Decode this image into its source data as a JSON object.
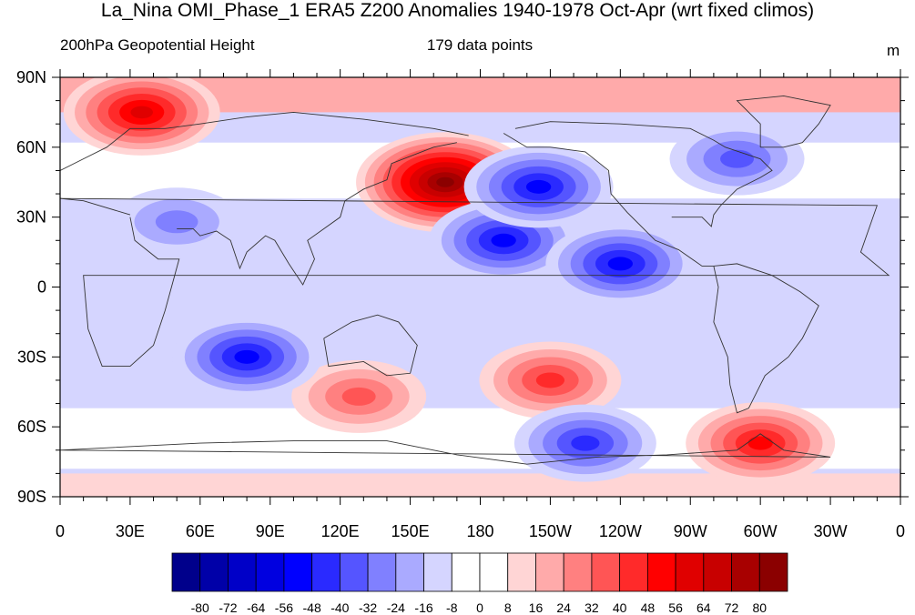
{
  "header": {
    "title": "La_Nina OMI_Phase_1 ERA5 Z200 Anomalies 1940-1978 Oct-Apr (wrt fixed climos)",
    "left_subtitle": "200hPa Geopotential Height",
    "center_subtitle": "179 data points",
    "units": "m"
  },
  "axes": {
    "lat_labels": [
      "90N",
      "60N",
      "30N",
      "0",
      "30S",
      "60S",
      "90S"
    ],
    "lon_labels": [
      "0",
      "30E",
      "60E",
      "90E",
      "120E",
      "150E",
      "180",
      "150W",
      "120W",
      "90W",
      "60W",
      "30W",
      "0"
    ]
  },
  "colorbar": {
    "levels": [
      "-80",
      "-72",
      "-64",
      "-56",
      "-48",
      "-40",
      "-32",
      "-24",
      "-16",
      "-8",
      "0",
      "8",
      "16",
      "24",
      "32",
      "40",
      "48",
      "56",
      "64",
      "72",
      "80"
    ],
    "colors": [
      "#00008b",
      "#0000a8",
      "#0000c8",
      "#0000e0",
      "#0000ff",
      "#2a2aff",
      "#5555ff",
      "#8080ff",
      "#aaaaff",
      "#d5d5ff",
      "#ffffff",
      "#ffffff",
      "#ffd5d5",
      "#ffaaaa",
      "#ff8080",
      "#ff5555",
      "#ff2a2a",
      "#ff0000",
      "#e00000",
      "#c80000",
      "#a80000",
      "#8b0000"
    ]
  },
  "anomaly_features": [
    {
      "sign": "positive",
      "lon_deg_e": 165,
      "lat_deg": 45,
      "peak": 80
    },
    {
      "sign": "positive",
      "lon_deg_e": 35,
      "lat_deg": 75,
      "peak": 56
    },
    {
      "sign": "positive",
      "lon_deg_e": 300,
      "lat_deg": -67,
      "peak": 48
    },
    {
      "sign": "positive",
      "lon_deg_e": 210,
      "lat_deg": -40,
      "peak": 40
    },
    {
      "sign": "positive",
      "lon_deg_e": 128,
      "lat_deg": -47,
      "peak": 32
    },
    {
      "sign": "negative",
      "lon_deg_e": 190,
      "lat_deg": 20,
      "peak": -48
    },
    {
      "sign": "negative",
      "lon_deg_e": 240,
      "lat_deg": 10,
      "peak": -48
    },
    {
      "sign": "negative",
      "lon_deg_e": 205,
      "lat_deg": 43,
      "peak": -48
    },
    {
      "sign": "negative",
      "lon_deg_e": 80,
      "lat_deg": -30,
      "peak": -48
    },
    {
      "sign": "negative",
      "lon_deg_e": 225,
      "lat_deg": -67,
      "peak": -40
    },
    {
      "sign": "negative",
      "lon_deg_e": 290,
      "lat_deg": 55,
      "peak": -32
    },
    {
      "sign": "negative",
      "lon_deg_e": 50,
      "lat_deg": 28,
      "peak": -24
    }
  ]
}
